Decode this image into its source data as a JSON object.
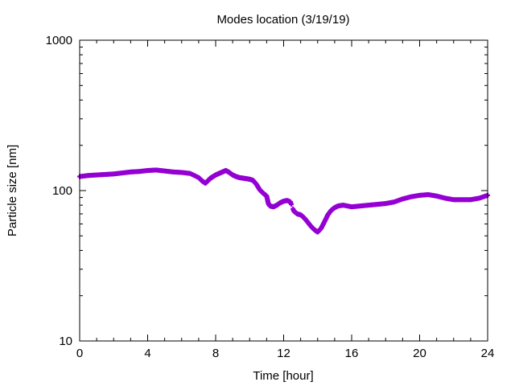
{
  "chart_data": {
    "type": "scatter",
    "title": "Modes location (3/19/19)",
    "xlabel": "Time [hour]",
    "ylabel": "Particle size [nm]",
    "xlim": [
      0,
      24
    ],
    "ylim": [
      10,
      1000
    ],
    "y_scale": "log",
    "grid": false,
    "legend": "none",
    "x_ticks": [
      "0",
      "4",
      "8",
      "12",
      "16",
      "20",
      "24"
    ],
    "y_ticks": [
      "10",
      "100",
      "1000"
    ],
    "colors": {
      "series": "#9400d3",
      "axes": "#000000",
      "background": "#ffffff"
    },
    "series": [
      {
        "x": [
          0.0,
          0.5,
          1.0,
          1.5,
          2.0,
          2.5,
          3.0,
          3.5,
          4.0,
          4.5,
          5.0,
          5.5,
          6.0,
          6.5,
          7.0,
          7.2,
          7.4,
          7.6,
          7.7,
          7.8,
          8.0,
          8.2,
          8.4,
          8.6,
          8.8,
          9.0,
          9.2,
          9.4,
          9.6,
          9.8,
          10.0,
          10.2,
          10.4,
          10.6,
          10.8,
          11.0,
          11.1,
          11.2,
          11.4,
          11.6,
          11.8,
          12.0,
          12.2,
          12.4,
          12.6,
          12.8,
          13.0,
          13.2,
          13.4,
          13.6,
          13.8,
          14.0,
          14.2,
          14.4,
          14.6,
          14.8,
          15.0,
          15.2,
          15.5,
          16.0,
          16.5,
          17.0,
          17.5,
          18.0,
          18.5,
          19.0,
          19.5,
          20.0,
          20.5,
          21.0,
          21.5,
          22.0,
          22.5,
          23.0,
          23.5,
          24.0
        ],
        "y": [
          124,
          126,
          127,
          128,
          129,
          131,
          133,
          134,
          136,
          137,
          135,
          133,
          132,
          130,
          122,
          116,
          112,
          118,
          121,
          123,
          127,
          130,
          133,
          136,
          132,
          127,
          124,
          122,
          121,
          120,
          119,
          117,
          110,
          101,
          96,
          92,
          82,
          79,
          78,
          80,
          83,
          85,
          86,
          84,
          73,
          70,
          69,
          66,
          62,
          58,
          55,
          53,
          56,
          62,
          69,
          74,
          77,
          79,
          80,
          78,
          79,
          80,
          81,
          82,
          84,
          88,
          91,
          93,
          94,
          92,
          89,
          87,
          87,
          87,
          89,
          93
        ]
      }
    ]
  }
}
